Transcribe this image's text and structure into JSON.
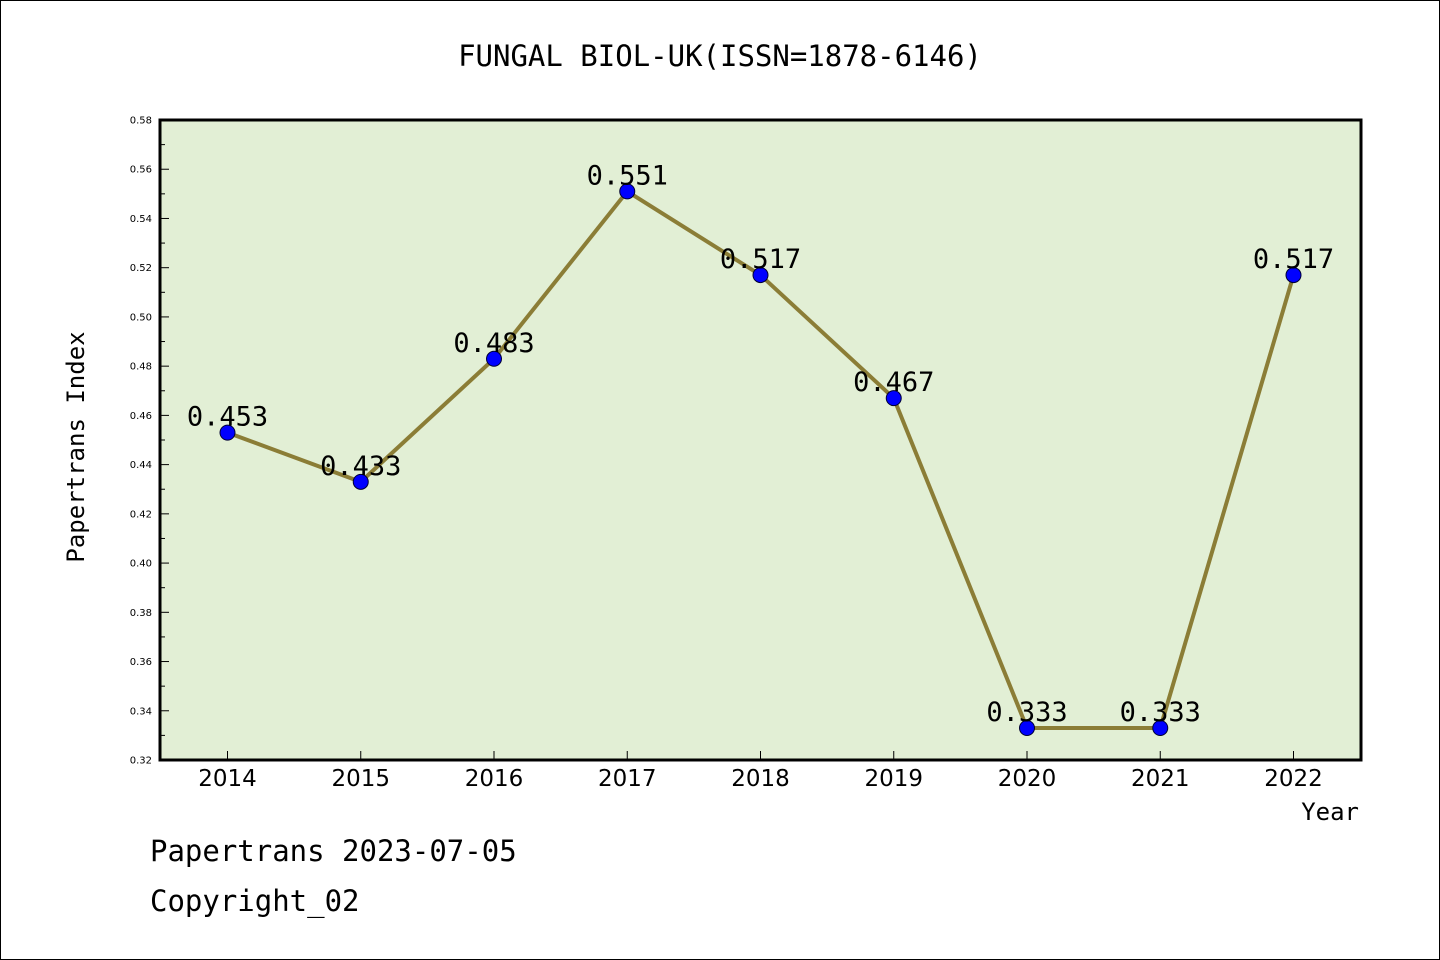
{
  "chart_data": {
    "type": "line",
    "title": "FUNGAL BIOL-UK(ISSN=1878-6146)",
    "xlabel": "Year",
    "ylabel": "Papertrans Index",
    "categories": [
      "2014",
      "2015",
      "2016",
      "2017",
      "2018",
      "2019",
      "2020",
      "2021",
      "2022"
    ],
    "series": [
      {
        "values": [
          0.453,
          0.433,
          0.483,
          0.551,
          0.517,
          0.467,
          0.333,
          0.333,
          0.517
        ],
        "labels": [
          "0.453",
          "0.433",
          "0.483",
          "0.551",
          "0.517",
          "0.467",
          "0.333",
          "0.333",
          "0.517"
        ]
      }
    ],
    "ylim": [
      0.32,
      0.58
    ],
    "yticks": [
      "0.32",
      "0.34",
      "0.36",
      "0.38",
      "0.40",
      "0.42",
      "0.44",
      "0.46",
      "0.48",
      "0.50",
      "0.52",
      "0.54",
      "0.56",
      "0.58"
    ],
    "grid": false,
    "legend": "none",
    "colors": {
      "plot_background": "#e2efd5",
      "line": "#8b7d36",
      "marker": "#0000ff",
      "axes": "#000000"
    }
  },
  "footer": {
    "line1": "Papertrans 2023-07-05",
    "line2": "Copyright_02"
  }
}
